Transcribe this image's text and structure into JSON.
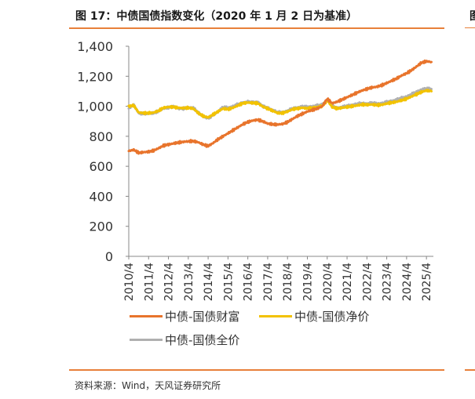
{
  "header": {
    "title": "图 17：中债国债指数变化（2020 年 1 月 2 日为基准）",
    "right_clip_char": "图"
  },
  "source": "资料来源：Wind，天风证券研究所",
  "colors": {
    "accent_rule": "#e8803a",
    "series_wealth": "#e8742c",
    "series_net": "#f2c200",
    "series_full": "#b0b0b0",
    "axis": "#888888"
  },
  "chart_data": {
    "type": "line",
    "title": "",
    "xlabel": "",
    "ylabel": "",
    "ylim": [
      0,
      1400
    ],
    "yticks": [
      0,
      200,
      400,
      600,
      800,
      1000,
      1200,
      1400
    ],
    "ytick_labels": [
      "0",
      "200",
      "400",
      "600",
      "800",
      "1,000",
      "1,200",
      "1,400"
    ],
    "xrange": [
      2010.25,
      2025.6
    ],
    "xticks": [
      2010.25,
      2011.25,
      2012.25,
      2013.25,
      2014.25,
      2015.25,
      2016.25,
      2017.25,
      2018.25,
      2019.25,
      2020.25,
      2021.25,
      2022.25,
      2023.25,
      2024.25,
      2025.25
    ],
    "xtick_labels": [
      "2010/4",
      "2011/4",
      "2012/4",
      "2013/4",
      "2014/4",
      "2015/4",
      "2016/4",
      "2017/4",
      "2018/4",
      "2019/4",
      "2020/4",
      "2021/4",
      "2022/4",
      "2023/4",
      "2024/4",
      "2025/4"
    ],
    "grid": false,
    "legend": "bottom",
    "series": [
      {
        "name": "中债-国债财富",
        "color": "#e8742c",
        "points": [
          [
            2010.25,
            702
          ],
          [
            2010.5,
            710
          ],
          [
            2010.75,
            690
          ],
          [
            2011.0,
            694
          ],
          [
            2011.25,
            697
          ],
          [
            2011.5,
            705
          ],
          [
            2011.75,
            720
          ],
          [
            2012.0,
            738
          ],
          [
            2012.25,
            745
          ],
          [
            2012.5,
            752
          ],
          [
            2012.75,
            758
          ],
          [
            2013.0,
            763
          ],
          [
            2013.25,
            766
          ],
          [
            2013.5,
            768
          ],
          [
            2013.75,
            760
          ],
          [
            2014.0,
            745
          ],
          [
            2014.25,
            735
          ],
          [
            2014.5,
            755
          ],
          [
            2014.75,
            780
          ],
          [
            2015.0,
            800
          ],
          [
            2015.25,
            820
          ],
          [
            2015.5,
            840
          ],
          [
            2015.75,
            860
          ],
          [
            2016.0,
            880
          ],
          [
            2016.25,
            895
          ],
          [
            2016.5,
            905
          ],
          [
            2016.75,
            910
          ],
          [
            2017.0,
            900
          ],
          [
            2017.25,
            885
          ],
          [
            2017.5,
            880
          ],
          [
            2017.75,
            878
          ],
          [
            2018.0,
            882
          ],
          [
            2018.25,
            895
          ],
          [
            2018.5,
            915
          ],
          [
            2018.75,
            935
          ],
          [
            2019.0,
            950
          ],
          [
            2019.25,
            965
          ],
          [
            2019.5,
            975
          ],
          [
            2019.75,
            985
          ],
          [
            2020.0,
            1000
          ],
          [
            2020.25,
            1050
          ],
          [
            2020.5,
            1020
          ],
          [
            2020.75,
            1030
          ],
          [
            2021.0,
            1045
          ],
          [
            2021.25,
            1060
          ],
          [
            2021.5,
            1075
          ],
          [
            2021.75,
            1090
          ],
          [
            2022.0,
            1105
          ],
          [
            2022.25,
            1115
          ],
          [
            2022.5,
            1125
          ],
          [
            2022.75,
            1130
          ],
          [
            2023.0,
            1140
          ],
          [
            2023.25,
            1155
          ],
          [
            2023.5,
            1170
          ],
          [
            2023.75,
            1185
          ],
          [
            2024.0,
            1205
          ],
          [
            2024.25,
            1220
          ],
          [
            2024.5,
            1240
          ],
          [
            2024.75,
            1265
          ],
          [
            2025.0,
            1290
          ],
          [
            2025.25,
            1300
          ],
          [
            2025.5,
            1295
          ]
        ]
      },
      {
        "name": "中债-国债净价",
        "color": "#f2c200",
        "points": [
          [
            2010.25,
            1000
          ],
          [
            2010.5,
            1005
          ],
          [
            2010.75,
            958
          ],
          [
            2011.0,
            955
          ],
          [
            2011.25,
            955
          ],
          [
            2011.5,
            958
          ],
          [
            2011.75,
            970
          ],
          [
            2012.0,
            990
          ],
          [
            2012.25,
            995
          ],
          [
            2012.5,
            995
          ],
          [
            2012.75,
            990
          ],
          [
            2013.0,
            988
          ],
          [
            2013.25,
            990
          ],
          [
            2013.5,
            985
          ],
          [
            2013.75,
            955
          ],
          [
            2014.0,
            935
          ],
          [
            2014.25,
            925
          ],
          [
            2014.5,
            945
          ],
          [
            2014.75,
            965
          ],
          [
            2015.0,
            985
          ],
          [
            2015.25,
            980
          ],
          [
            2015.5,
            990
          ],
          [
            2015.75,
            1005
          ],
          [
            2016.0,
            1020
          ],
          [
            2016.25,
            1025
          ],
          [
            2016.5,
            1022
          ],
          [
            2016.75,
            1020
          ],
          [
            2017.0,
            998
          ],
          [
            2017.25,
            985
          ],
          [
            2017.5,
            970
          ],
          [
            2017.75,
            955
          ],
          [
            2018.0,
            955
          ],
          [
            2018.25,
            965
          ],
          [
            2018.5,
            980
          ],
          [
            2018.75,
            985
          ],
          [
            2019.0,
            990
          ],
          [
            2019.25,
            985
          ],
          [
            2019.5,
            990
          ],
          [
            2019.75,
            995
          ],
          [
            2020.0,
            1000
          ],
          [
            2020.25,
            1040
          ],
          [
            2020.5,
            995
          ],
          [
            2020.75,
            985
          ],
          [
            2021.0,
            990
          ],
          [
            2021.25,
            995
          ],
          [
            2021.5,
            1000
          ],
          [
            2021.75,
            1005
          ],
          [
            2022.0,
            1012
          ],
          [
            2022.25,
            1010
          ],
          [
            2022.5,
            1012
          ],
          [
            2022.75,
            1008
          ],
          [
            2023.0,
            1010
          ],
          [
            2023.25,
            1018
          ],
          [
            2023.5,
            1025
          ],
          [
            2023.75,
            1030
          ],
          [
            2024.0,
            1040
          ],
          [
            2024.25,
            1050
          ],
          [
            2024.5,
            1065
          ],
          [
            2024.75,
            1080
          ],
          [
            2025.0,
            1095
          ],
          [
            2025.25,
            1105
          ],
          [
            2025.5,
            1100
          ]
        ]
      },
      {
        "name": "中债-国债全价",
        "color": "#b0b0b0",
        "points": [
          [
            2010.25,
            990
          ],
          [
            2010.5,
            1010
          ],
          [
            2010.75,
            955
          ],
          [
            2011.0,
            950
          ],
          [
            2011.25,
            952
          ],
          [
            2011.5,
            955
          ],
          [
            2011.75,
            968
          ],
          [
            2012.0,
            985
          ],
          [
            2012.25,
            992
          ],
          [
            2012.5,
            998
          ],
          [
            2012.75,
            985
          ],
          [
            2013.0,
            985
          ],
          [
            2013.25,
            992
          ],
          [
            2013.5,
            990
          ],
          [
            2013.75,
            958
          ],
          [
            2014.0,
            932
          ],
          [
            2014.25,
            920
          ],
          [
            2014.5,
            942
          ],
          [
            2014.75,
            962
          ],
          [
            2015.0,
            995
          ],
          [
            2015.25,
            990
          ],
          [
            2015.5,
            1000
          ],
          [
            2015.75,
            1012
          ],
          [
            2016.0,
            1025
          ],
          [
            2016.25,
            1030
          ],
          [
            2016.5,
            1025
          ],
          [
            2016.75,
            1030
          ],
          [
            2017.0,
            1000
          ],
          [
            2017.25,
            990
          ],
          [
            2017.5,
            975
          ],
          [
            2017.75,
            960
          ],
          [
            2018.0,
            960
          ],
          [
            2018.25,
            970
          ],
          [
            2018.5,
            985
          ],
          [
            2018.75,
            992
          ],
          [
            2019.0,
            998
          ],
          [
            2019.25,
            995
          ],
          [
            2019.5,
            1000
          ],
          [
            2019.75,
            1005
          ],
          [
            2020.0,
            1010
          ],
          [
            2020.25,
            1048
          ],
          [
            2020.5,
            1000
          ],
          [
            2020.75,
            990
          ],
          [
            2021.0,
            995
          ],
          [
            2021.25,
            1002
          ],
          [
            2021.5,
            1010
          ],
          [
            2021.75,
            1015
          ],
          [
            2022.0,
            1020
          ],
          [
            2022.25,
            1018
          ],
          [
            2022.5,
            1022
          ],
          [
            2022.75,
            1018
          ],
          [
            2023.0,
            1020
          ],
          [
            2023.25,
            1028
          ],
          [
            2023.5,
            1035
          ],
          [
            2023.75,
            1045
          ],
          [
            2024.0,
            1055
          ],
          [
            2024.25,
            1065
          ],
          [
            2024.5,
            1080
          ],
          [
            2024.75,
            1095
          ],
          [
            2025.0,
            1112
          ],
          [
            2025.25,
            1118
          ],
          [
            2025.5,
            1115
          ]
        ]
      }
    ]
  }
}
